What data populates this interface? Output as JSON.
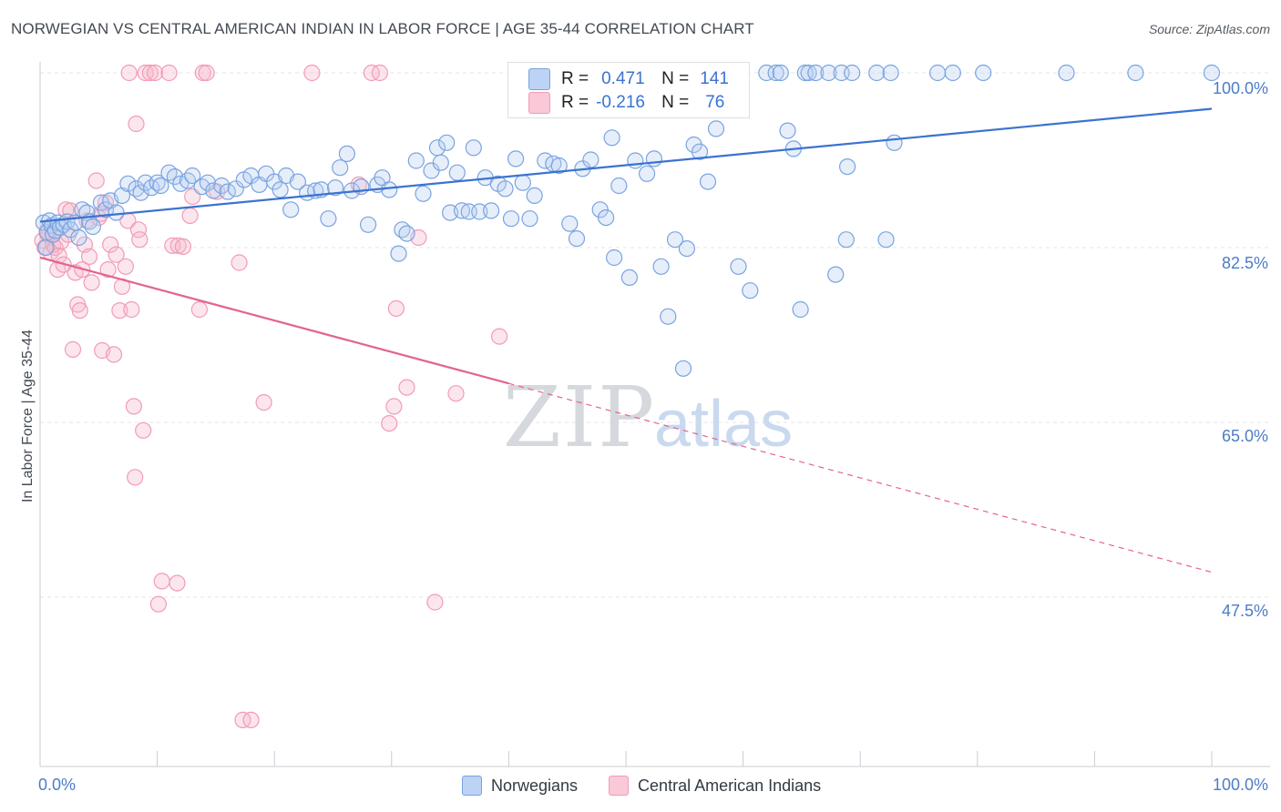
{
  "header": {
    "title": "NORWEGIAN VS CENTRAL AMERICAN INDIAN IN LABOR FORCE | AGE 35-44 CORRELATION CHART",
    "source": "Source: ZipAtlas.com"
  },
  "watermark": {
    "zip": "ZIP",
    "atlas": "atlas"
  },
  "colors": {
    "blue": "#7aa3e0",
    "blue_line": "#3a73d0",
    "pink": "#f29bb6",
    "pink_line": "#e3648f",
    "grid": "#e3e6ea",
    "axis_text": "#4c7cc8"
  },
  "legend_stats": [
    {
      "r_label": "R =",
      "r_value": "0.471",
      "n_label": "N =",
      "n_value": "141"
    },
    {
      "r_label": "R =",
      "r_value": "-0.216",
      "n_label": "N =",
      "n_value": "76"
    }
  ],
  "chart_data": {
    "type": "scatter",
    "title": "NORWEGIAN VS CENTRAL AMERICAN INDIAN IN LABOR FORCE | AGE 35-44 CORRELATION CHART",
    "xlabel": "",
    "ylabel": "In Labor Force | Age 35-44",
    "xlim": [
      0,
      100
    ],
    "ylim": [
      30,
      102
    ],
    "x_tick_labels": [
      "0.0%",
      "100.0%"
    ],
    "y_ticks": [
      100.0,
      82.5,
      65.0,
      47.5
    ],
    "y_tick_labels": [
      "100.0%",
      "82.5%",
      "65.0%",
      "47.5%"
    ],
    "grid": true,
    "legend_position": "bottom",
    "series": [
      {
        "name": "Norwegians",
        "R": 0.471,
        "N": 141,
        "trend": {
          "x": [
            0,
            100
          ],
          "y": [
            85.1,
            96.4
          ]
        },
        "points": [
          [
            0.3,
            85.0
          ],
          [
            0.5,
            82.5
          ],
          [
            0.6,
            84.0
          ],
          [
            0.8,
            85.2
          ],
          [
            1.0,
            84.7
          ],
          [
            1.1,
            83.8
          ],
          [
            1.3,
            84.2
          ],
          [
            1.5,
            85.0
          ],
          [
            1.7,
            84.5
          ],
          [
            2.0,
            84.8
          ],
          [
            2.3,
            85.1
          ],
          [
            2.6,
            84.3
          ],
          [
            3.0,
            85.0
          ],
          [
            3.3,
            83.5
          ],
          [
            3.6,
            86.3
          ],
          [
            4.0,
            86.0
          ],
          [
            4.2,
            85.1
          ],
          [
            4.5,
            84.6
          ],
          [
            5.2,
            87.0
          ],
          [
            5.6,
            86.3
          ],
          [
            6.0,
            87.2
          ],
          [
            6.5,
            86.0
          ],
          [
            7.0,
            87.7
          ],
          [
            7.5,
            88.9
          ],
          [
            8.2,
            88.4
          ],
          [
            8.6,
            88.0
          ],
          [
            9.0,
            89.0
          ],
          [
            9.5,
            88.5
          ],
          [
            10.0,
            89.0
          ],
          [
            10.3,
            88.7
          ],
          [
            11.0,
            90.0
          ],
          [
            11.5,
            89.6
          ],
          [
            12.0,
            88.9
          ],
          [
            12.6,
            89.2
          ],
          [
            13.0,
            89.7
          ],
          [
            13.8,
            88.6
          ],
          [
            14.3,
            89.0
          ],
          [
            14.8,
            88.2
          ],
          [
            15.5,
            88.7
          ],
          [
            16.0,
            88.1
          ],
          [
            16.7,
            88.4
          ],
          [
            17.4,
            89.3
          ],
          [
            18.0,
            89.7
          ],
          [
            18.7,
            88.8
          ],
          [
            19.3,
            89.9
          ],
          [
            20.0,
            89.1
          ],
          [
            20.5,
            88.3
          ],
          [
            21.0,
            89.7
          ],
          [
            21.4,
            86.3
          ],
          [
            22.0,
            89.1
          ],
          [
            22.8,
            88.0
          ],
          [
            23.5,
            88.2
          ],
          [
            24.0,
            88.3
          ],
          [
            24.6,
            85.4
          ],
          [
            25.2,
            88.5
          ],
          [
            25.6,
            90.5
          ],
          [
            26.2,
            91.9
          ],
          [
            26.6,
            88.2
          ],
          [
            27.4,
            88.6
          ],
          [
            28.0,
            84.8
          ],
          [
            28.8,
            88.8
          ],
          [
            29.2,
            89.5
          ],
          [
            29.8,
            88.3
          ],
          [
            30.6,
            81.9
          ],
          [
            30.9,
            84.3
          ],
          [
            31.3,
            83.9
          ],
          [
            32.1,
            91.2
          ],
          [
            32.7,
            87.9
          ],
          [
            33.4,
            90.2
          ],
          [
            33.9,
            92.5
          ],
          [
            34.2,
            91.0
          ],
          [
            34.7,
            93.0
          ],
          [
            35.0,
            86.0
          ],
          [
            35.6,
            90.0
          ],
          [
            36.0,
            86.2
          ],
          [
            36.6,
            86.1
          ],
          [
            37.0,
            92.5
          ],
          [
            37.5,
            86.1
          ],
          [
            38.0,
            89.5
          ],
          [
            38.5,
            86.2
          ],
          [
            39.1,
            88.9
          ],
          [
            39.7,
            88.4
          ],
          [
            40.2,
            85.4
          ],
          [
            40.6,
            91.4
          ],
          [
            41.2,
            89.0
          ],
          [
            41.8,
            85.4
          ],
          [
            42.2,
            87.7
          ],
          [
            43.1,
            91.2
          ],
          [
            43.8,
            90.9
          ],
          [
            44.3,
            90.7
          ],
          [
            44.7,
            98.0
          ],
          [
            45.2,
            84.9
          ],
          [
            45.8,
            83.4
          ],
          [
            46.3,
            90.4
          ],
          [
            47.0,
            91.3
          ],
          [
            47.8,
            86.3
          ],
          [
            48.3,
            85.5
          ],
          [
            48.8,
            93.5
          ],
          [
            49.0,
            81.5
          ],
          [
            49.4,
            88.7
          ],
          [
            50.3,
            79.5
          ],
          [
            50.8,
            91.2
          ],
          [
            51.8,
            89.9
          ],
          [
            52.4,
            91.4
          ],
          [
            53.0,
            80.6
          ],
          [
            53.6,
            75.6
          ],
          [
            54.2,
            83.3
          ],
          [
            54.9,
            70.4
          ],
          [
            55.2,
            82.4
          ],
          [
            55.8,
            92.8
          ],
          [
            56.3,
            92.1
          ],
          [
            56.7,
            99.7
          ],
          [
            57.0,
            89.1
          ],
          [
            57.7,
            94.4
          ],
          [
            58.2,
            100.0
          ],
          [
            58.8,
            98.1
          ],
          [
            59.6,
            80.6
          ],
          [
            60.6,
            78.2
          ],
          [
            62.0,
            100.0
          ],
          [
            62.8,
            100.0
          ],
          [
            63.2,
            100.0
          ],
          [
            63.8,
            94.2
          ],
          [
            64.3,
            92.4
          ],
          [
            64.9,
            76.3
          ],
          [
            65.3,
            100.0
          ],
          [
            65.6,
            100.0
          ],
          [
            66.2,
            100.0
          ],
          [
            67.3,
            100.0
          ],
          [
            67.9,
            79.8
          ],
          [
            68.4,
            100.0
          ],
          [
            68.8,
            83.3
          ],
          [
            68.9,
            90.6
          ],
          [
            69.3,
            100.0
          ],
          [
            71.4,
            100.0
          ],
          [
            72.2,
            83.3
          ],
          [
            72.6,
            100.0
          ],
          [
            72.9,
            93.0
          ],
          [
            76.6,
            100.0
          ],
          [
            77.9,
            100.0
          ],
          [
            80.5,
            100.0
          ],
          [
            87.6,
            100.0
          ],
          [
            93.5,
            100.0
          ],
          [
            100.0,
            100.0
          ]
        ]
      },
      {
        "name": "Central American Indians",
        "R": -0.216,
        "N": 76,
        "trend": {
          "x": [
            0,
            40
          ],
          "y": [
            81.5,
            68.9
          ]
        },
        "trend_dashed": {
          "x": [
            40,
            100
          ],
          "y": [
            68.9,
            50.0
          ]
        },
        "points": [
          [
            0.2,
            83.2
          ],
          [
            0.4,
            82.5
          ],
          [
            0.6,
            84.2
          ],
          [
            0.7,
            83.8
          ],
          [
            0.9,
            82.0
          ],
          [
            1.1,
            82.8
          ],
          [
            1.3,
            82.5
          ],
          [
            1.5,
            80.3
          ],
          [
            1.6,
            81.7
          ],
          [
            1.8,
            83.1
          ],
          [
            2.0,
            80.8
          ],
          [
            2.2,
            86.3
          ],
          [
            2.4,
            83.8
          ],
          [
            2.6,
            86.2
          ],
          [
            2.8,
            72.3
          ],
          [
            3.0,
            80.0
          ],
          [
            3.2,
            76.8
          ],
          [
            3.4,
            76.2
          ],
          [
            3.6,
            80.3
          ],
          [
            3.8,
            82.8
          ],
          [
            4.0,
            85.2
          ],
          [
            4.2,
            81.6
          ],
          [
            4.4,
            79.0
          ],
          [
            4.8,
            89.2
          ],
          [
            5.0,
            85.5
          ],
          [
            5.2,
            85.9
          ],
          [
            5.3,
            72.2
          ],
          [
            5.6,
            87.0
          ],
          [
            5.8,
            80.3
          ],
          [
            6.0,
            82.8
          ],
          [
            6.3,
            71.8
          ],
          [
            6.5,
            81.8
          ],
          [
            6.8,
            76.2
          ],
          [
            7.0,
            78.6
          ],
          [
            7.3,
            80.6
          ],
          [
            7.5,
            85.2
          ],
          [
            7.6,
            100.0
          ],
          [
            7.8,
            76.3
          ],
          [
            8.0,
            66.6
          ],
          [
            8.1,
            59.5
          ],
          [
            8.2,
            94.9
          ],
          [
            8.4,
            84.3
          ],
          [
            8.5,
            83.3
          ],
          [
            8.8,
            64.2
          ],
          [
            9.0,
            100.0
          ],
          [
            9.4,
            100.0
          ],
          [
            9.8,
            100.0
          ],
          [
            10.1,
            46.8
          ],
          [
            10.4,
            49.1
          ],
          [
            11.0,
            100.0
          ],
          [
            11.3,
            82.7
          ],
          [
            11.7,
            48.9
          ],
          [
            11.8,
            82.7
          ],
          [
            12.2,
            82.6
          ],
          [
            12.8,
            85.7
          ],
          [
            13.0,
            87.6
          ],
          [
            13.6,
            76.3
          ],
          [
            13.9,
            100.0
          ],
          [
            14.2,
            100.0
          ],
          [
            15.1,
            88.1
          ],
          [
            17.0,
            81.0
          ],
          [
            17.3,
            35.2
          ],
          [
            18.0,
            35.2
          ],
          [
            19.1,
            67.0
          ],
          [
            23.2,
            100.0
          ],
          [
            27.2,
            88.8
          ],
          [
            28.3,
            100.0
          ],
          [
            29.0,
            100.0
          ],
          [
            29.8,
            64.9
          ],
          [
            30.2,
            66.6
          ],
          [
            30.4,
            76.4
          ],
          [
            31.3,
            68.5
          ],
          [
            32.3,
            83.5
          ],
          [
            33.7,
            47.0
          ],
          [
            35.5,
            67.9
          ],
          [
            39.2,
            73.6
          ]
        ]
      }
    ]
  },
  "legend": {
    "items": [
      {
        "label": "Norwegians",
        "color": "#bcd3f5",
        "border": "#7aa3e0"
      },
      {
        "label": "Central American Indians",
        "color": "#f9c9d8",
        "border": "#f29bb6"
      }
    ]
  }
}
